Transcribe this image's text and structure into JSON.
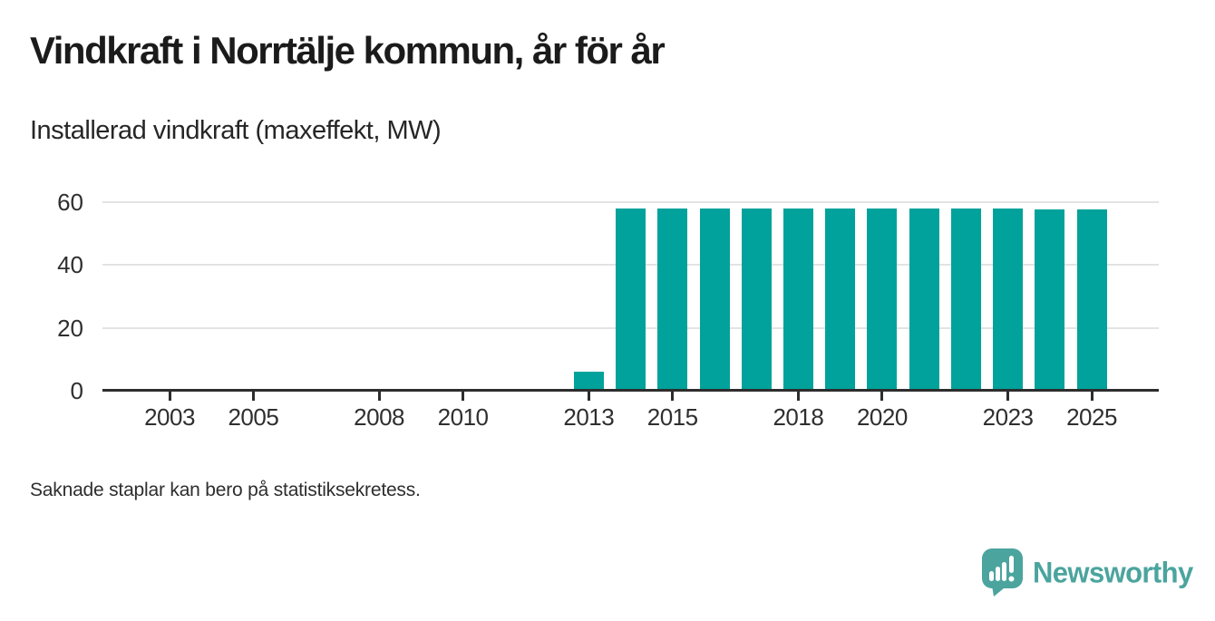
{
  "title": "Vindkraft i Norrtälje kommun, år för år",
  "subtitle": "Installerad vindkraft (maxeffekt, MW)",
  "footnote": "Saknade staplar kan bero på statistiksekretess.",
  "branding": {
    "logo_text": "Newsworthy",
    "logo_icon": "speech-bubble-bar-chart-icon",
    "logo_color": "#4ba49e"
  },
  "colors": {
    "bar": "#00a29b",
    "axis": "#2d2d2d",
    "grid": "#e3e3e3",
    "title_text": "#1b1b1b",
    "tick_label": "#2f2f2f"
  },
  "chart_data": {
    "type": "bar",
    "title": "Vindkraft i Norrtälje kommun, år för år",
    "subtitle": "Installerad vindkraft (maxeffekt, MW)",
    "xlabel": "",
    "ylabel": "Installerad vindkraft (maxeffekt, MW)",
    "x": [
      2013,
      2014,
      2015,
      2016,
      2017,
      2018,
      2019,
      2020,
      2021,
      2022,
      2023,
      2024,
      2025
    ],
    "values": [
      6,
      58,
      58,
      58,
      58,
      58,
      58,
      58,
      58,
      58,
      58,
      57.6,
      57.6
    ],
    "x_domain": [
      2001.4,
      2026.6
    ],
    "x_ticks": [
      2003,
      2005,
      2008,
      2010,
      2013,
      2015,
      2018,
      2020,
      2023,
      2025
    ],
    "y_ticks": [
      0,
      20,
      40,
      60
    ],
    "ylim": [
      0,
      60
    ],
    "grid": "horizontal-light-behind-bars",
    "legend": "none",
    "bar_color": "#00a29b",
    "note": "Missing bars before 2013 — no values shown for 2001–2012"
  }
}
